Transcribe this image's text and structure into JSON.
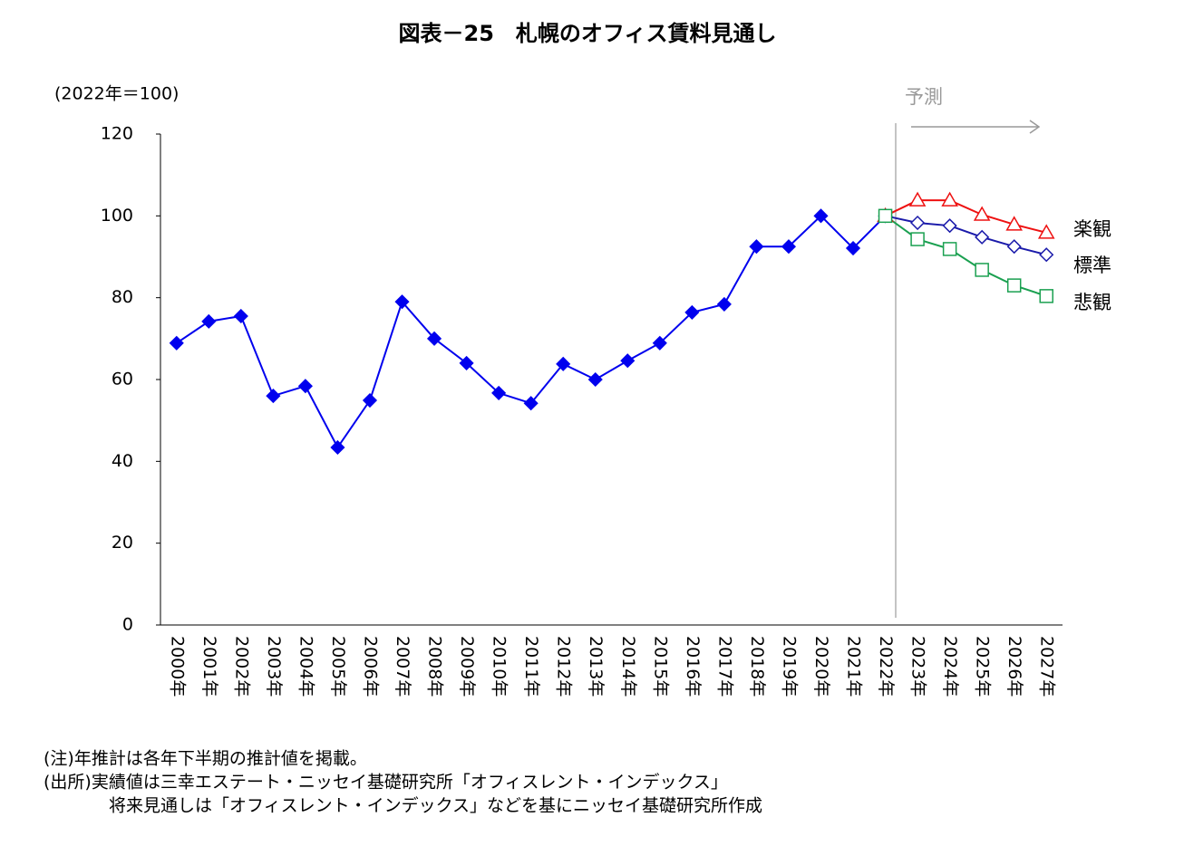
{
  "chart_data": {
    "type": "line",
    "title": "図表－25　札幌のオフィス賃料見通し",
    "y_label": "(2022年＝100)",
    "forecast_label": "予測",
    "notes": [
      "(注)年推計は各年下半期の推計値を掲載。",
      "(出所)実績値は三幸エステート・ニッセイ基礎研究所「オフィスレント・インデックス」",
      "将来見通しは「オフィスレント・インデックス」などを基にニッセイ基礎研究所作成"
    ],
    "categories": [
      "2000年",
      "2001年",
      "2002年",
      "2003年",
      "2004年",
      "2005年",
      "2006年",
      "2007年",
      "2008年",
      "2009年",
      "2010年",
      "2011年",
      "2012年",
      "2013年",
      "2014年",
      "2015年",
      "2016年",
      "2017年",
      "2018年",
      "2019年",
      "2020年",
      "2021年",
      "2022年",
      "2023年",
      "2024年",
      "2025年",
      "2026年",
      "2027年"
    ],
    "series": [
      {
        "color": "#0000ee",
        "marker": "diamond-filled",
        "values": [
          68.9,
          74.2,
          75.5,
          56.0,
          58.4,
          43.4,
          54.9,
          79.0,
          70.0,
          64.0,
          56.7,
          54.2,
          63.8,
          60.0,
          64.6,
          68.9,
          76.4,
          78.4,
          92.5,
          92.5,
          100,
          92.1,
          100,
          null,
          null,
          null,
          null,
          null
        ]
      },
      {
        "name": "楽観",
        "color": "#ee1111",
        "marker": "triangle-open",
        "values": [
          null,
          null,
          null,
          null,
          null,
          null,
          null,
          null,
          null,
          null,
          null,
          null,
          null,
          null,
          null,
          null,
          null,
          null,
          null,
          null,
          null,
          null,
          100,
          103.8,
          103.8,
          100.3,
          97.9,
          95.9
        ]
      },
      {
        "name": "標準",
        "color": "#1a1aaa",
        "marker": "diamond-open",
        "values": [
          null,
          null,
          null,
          null,
          null,
          null,
          null,
          null,
          null,
          null,
          null,
          null,
          null,
          null,
          null,
          null,
          null,
          null,
          null,
          null,
          null,
          null,
          100,
          98.3,
          97.6,
          94.8,
          92.5,
          90.5
        ]
      },
      {
        "name": "悲観",
        "color": "#1aa050",
        "marker": "square-open",
        "values": [
          null,
          null,
          null,
          null,
          null,
          null,
          null,
          null,
          null,
          null,
          null,
          null,
          null,
          null,
          null,
          null,
          null,
          null,
          null,
          null,
          null,
          null,
          100,
          94.3,
          91.9,
          86.8,
          83.0,
          80.4
        ]
      }
    ],
    "legend_colors": [
      "#ee1111",
      "#1a6fc0",
      "#1aa050"
    ],
    "ylim": [
      0,
      120
    ],
    "yticks": [
      0,
      20,
      40,
      60,
      80,
      100,
      120
    ],
    "grid": false
  }
}
